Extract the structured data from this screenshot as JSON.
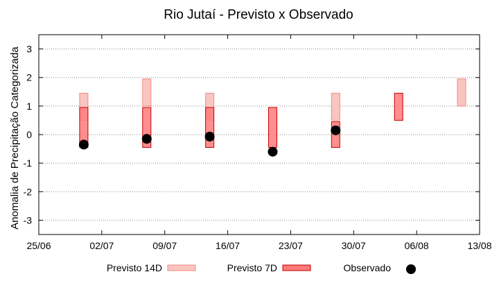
{
  "chart_data": {
    "type": "bar",
    "title": "Rio Jutaí - Previsto x Observado",
    "xlabel": "",
    "ylabel": "Anomalia de Precipitação Categorizada",
    "xlim": [
      "2025-06-25",
      "2025-08-13"
    ],
    "xticks": [
      "25/06",
      "02/07",
      "09/07",
      "16/07",
      "23/07",
      "30/07",
      "06/08",
      "13/08"
    ],
    "ylim": [
      -3.5,
      3.5
    ],
    "yticks": [
      -3,
      -2,
      -1,
      0,
      1,
      2,
      3
    ],
    "grid": "horizontal-dotted",
    "legend_position": "bottom",
    "colors": {
      "forecast_14d_fill": "#f9c5c0",
      "forecast_14d_stroke": "#f08a80",
      "forecast_7d_fill": "#ff7a7a",
      "forecast_7d_stroke": "#c00000",
      "observed": "#000000",
      "grid": "#888888"
    },
    "series": [
      {
        "name": "Previsto 14D",
        "kind": "range",
        "points": [
          {
            "date": "2025-06-30",
            "low": 0.5,
            "high": 1.45
          },
          {
            "date": "2025-07-07",
            "low": 1.0,
            "high": 1.95
          },
          {
            "date": "2025-07-14",
            "low": 0.5,
            "high": 1.45
          },
          {
            "date": "2025-07-28",
            "low": 0.5,
            "high": 1.45
          },
          {
            "date": "2025-08-11",
            "low": 1.0,
            "high": 1.95
          }
        ]
      },
      {
        "name": "Previsto 7D",
        "kind": "range",
        "points": [
          {
            "date": "2025-06-30",
            "low": -0.45,
            "high": 0.95
          },
          {
            "date": "2025-07-07",
            "low": -0.45,
            "high": 0.95
          },
          {
            "date": "2025-07-14",
            "low": -0.45,
            "high": 0.95
          },
          {
            "date": "2025-07-21",
            "low": -0.45,
            "high": 0.95
          },
          {
            "date": "2025-07-28",
            "low": -0.45,
            "high": 0.45
          },
          {
            "date": "2025-08-04",
            "low": 0.5,
            "high": 1.45
          }
        ]
      },
      {
        "name": "Observado",
        "kind": "point",
        "points": [
          {
            "date": "2025-06-30",
            "value": -0.35
          },
          {
            "date": "2025-07-07",
            "value": -0.15
          },
          {
            "date": "2025-07-14",
            "value": -0.07
          },
          {
            "date": "2025-07-21",
            "value": -0.6
          },
          {
            "date": "2025-07-28",
            "value": 0.15
          }
        ]
      }
    ]
  }
}
